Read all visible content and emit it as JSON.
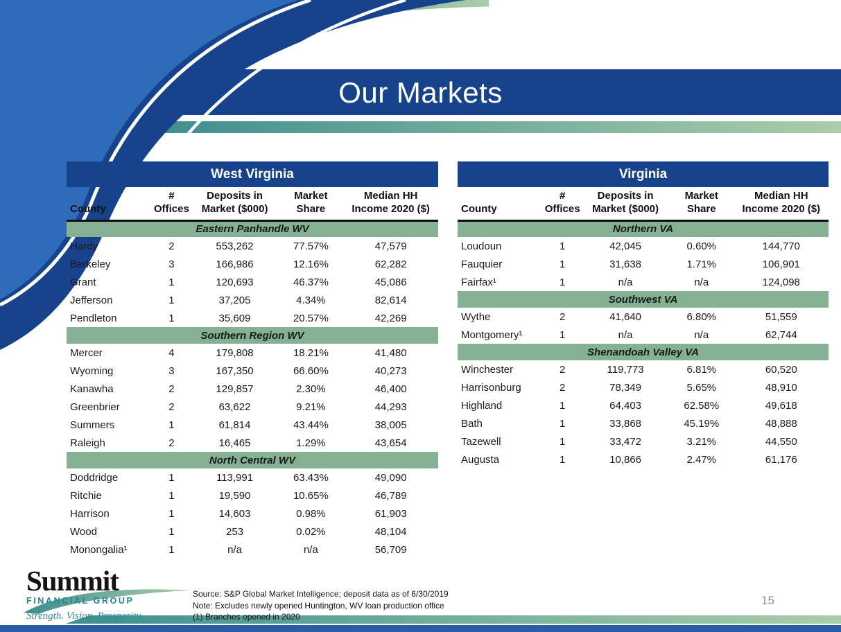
{
  "slide": {
    "title": "Our Markets",
    "page_number": "15"
  },
  "logo": {
    "name": "Summit",
    "subtitle": "FINANCIAL GROUP",
    "tagline": "Strength. Vision. Prosperity."
  },
  "footnotes": [
    "Source: S&P Global Market Intelligence; deposit data as of 6/30/2019",
    "Note: Excludes newly opened Huntington, WV loan production office",
    "(1) Branches opened in 2020"
  ],
  "colors": {
    "header_blue": "#17438D",
    "medium_blue": "#2E6CB9",
    "section_green": "#86B093",
    "teal": "#3E8E8F",
    "light_green": "#AACDA9"
  },
  "tables": [
    {
      "title": "West Virginia",
      "columns": [
        "County",
        "#\nOffices",
        "Deposits in\nMarket ($000)",
        "Market\nShare",
        "Median HH\nIncome 2020 ($)"
      ],
      "sections": [
        {
          "label": "Eastern Panhandle WV",
          "rows": [
            [
              "Hardy",
              "2",
              "553,262",
              "77.57%",
              "47,579"
            ],
            [
              "Berkeley",
              "3",
              "166,986",
              "12.16%",
              "62,282"
            ],
            [
              "Grant",
              "1",
              "120,693",
              "46.37%",
              "45,086"
            ],
            [
              "Jefferson",
              "1",
              "37,205",
              "4.34%",
              "82,614"
            ],
            [
              "Pendleton",
              "1",
              "35,609",
              "20.57%",
              "42,269"
            ]
          ]
        },
        {
          "label": "Southern Region WV",
          "rows": [
            [
              "Mercer",
              "4",
              "179,808",
              "18.21%",
              "41,480"
            ],
            [
              "Wyoming",
              "3",
              "167,350",
              "66.60%",
              "40,273"
            ],
            [
              "Kanawha",
              "2",
              "129,857",
              "2.30%",
              "46,400"
            ],
            [
              "Greenbrier",
              "2",
              "63,622",
              "9.21%",
              "44,293"
            ],
            [
              "Summers",
              "1",
              "61,814",
              "43.44%",
              "38,005"
            ],
            [
              "Raleigh",
              "2",
              "16,465",
              "1.29%",
              "43,654"
            ]
          ]
        },
        {
          "label": "North Central WV",
          "rows": [
            [
              "Doddridge",
              "1",
              "113,991",
              "63.43%",
              "49,090"
            ],
            [
              "Ritchie",
              "1",
              "19,590",
              "10.65%",
              "46,789"
            ],
            [
              "Harrison",
              "1",
              "14,603",
              "0.98%",
              "61,903"
            ],
            [
              "Wood",
              "1",
              "253",
              "0.02%",
              "48,104"
            ],
            [
              "Monongalia¹",
              "1",
              "n/a",
              "n/a",
              "56,709"
            ]
          ]
        }
      ]
    },
    {
      "title": "Virginia",
      "columns": [
        "County",
        "#\nOffices",
        "Deposits in\nMarket ($000)",
        "Market\nShare",
        "Median HH\nIncome 2020 ($)"
      ],
      "sections": [
        {
          "label": "Northern VA",
          "rows": [
            [
              "Loudoun",
              "1",
              "42,045",
              "0.60%",
              "144,770"
            ],
            [
              "Fauquier",
              "1",
              "31,638",
              "1.71%",
              "106,901"
            ],
            [
              "Fairfax¹",
              "1",
              "n/a",
              "n/a",
              "124,098"
            ]
          ]
        },
        {
          "label": "Southwest VA",
          "rows": [
            [
              "Wythe",
              "2",
              "41,640",
              "6.80%",
              "51,559"
            ],
            [
              "Montgomery¹",
              "1",
              "n/a",
              "n/a",
              "62,744"
            ]
          ]
        },
        {
          "label": "Shenandoah Valley VA",
          "rows": [
            [
              "Winchester",
              "2",
              "119,773",
              "6.81%",
              "60,520"
            ],
            [
              "Harrisonburg",
              "2",
              "78,349",
              "5.65%",
              "48,910"
            ],
            [
              "Highland",
              "1",
              "64,403",
              "62.58%",
              "49,618"
            ],
            [
              "Bath",
              "1",
              "33,868",
              "45.19%",
              "48,888"
            ],
            [
              "Tazewell",
              "1",
              "33,472",
              "3.21%",
              "44,550"
            ],
            [
              "Augusta",
              "1",
              "10,866",
              "2.47%",
              "61,176"
            ]
          ]
        }
      ]
    }
  ]
}
